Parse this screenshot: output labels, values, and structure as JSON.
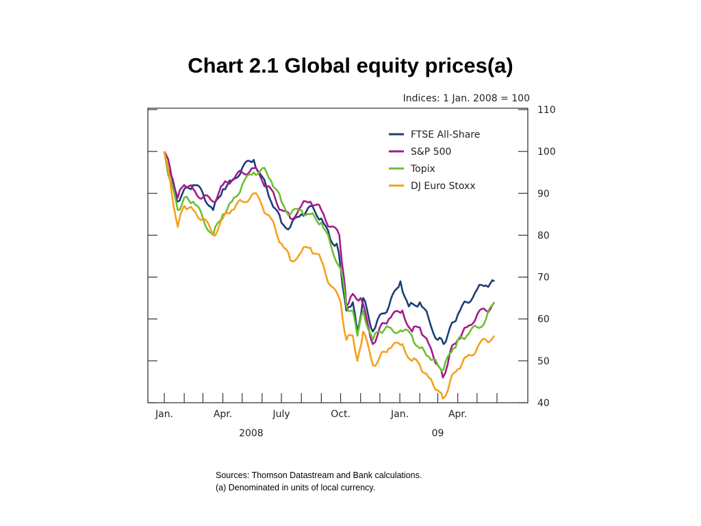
{
  "slide": {
    "title": "Chart 2.1  Global equity prices(a)",
    "sources": "Sources:  Thomson Datastream and Bank calculations.",
    "footnote": "(a) Denominated in units of local currency."
  },
  "chart_data": {
    "type": "line",
    "units_label": "Indices:  1 Jan. 2008 = 100",
    "ylim": [
      40,
      110
    ],
    "yticks": [
      40,
      50,
      60,
      70,
      80,
      90,
      100,
      110
    ],
    "y_axis_side": "right",
    "grid": false,
    "legend_position": "top-right",
    "x_range": [
      "2008-01-01",
      "2009-06-01"
    ],
    "month_ticks": [
      "2008-01-01",
      "2008-02-01",
      "2008-03-01",
      "2008-04-01",
      "2008-05-01",
      "2008-06-01",
      "2008-07-01",
      "2008-08-01",
      "2008-09-01",
      "2008-10-01",
      "2008-11-01",
      "2008-12-01",
      "2009-01-01",
      "2009-02-01",
      "2009-03-01",
      "2009-04-01",
      "2009-05-01",
      "2009-06-01"
    ],
    "x_labels": [
      {
        "date": "2008-01-01",
        "label": "Jan."
      },
      {
        "date": "2008-04-01",
        "label": "Apr."
      },
      {
        "date": "2008-07-01",
        "label": "July"
      },
      {
        "date": "2008-10-01",
        "label": "Oct."
      },
      {
        "date": "2009-01-01",
        "label": "Jan."
      },
      {
        "date": "2009-04-01",
        "label": "Apr."
      }
    ],
    "year_labels": [
      {
        "date": "2008-05-15",
        "label": "2008"
      },
      {
        "date": "2009-03-01",
        "label": "09"
      }
    ],
    "series": [
      {
        "name": "FTSE All-Share",
        "color": "#1b3c78",
        "points": [
          [
            "2008-01-01",
            100
          ],
          [
            "2008-01-10",
            95
          ],
          [
            "2008-01-21",
            88
          ],
          [
            "2008-02-01",
            91
          ],
          [
            "2008-02-15",
            92
          ],
          [
            "2008-03-01",
            90
          ],
          [
            "2008-03-17",
            86
          ],
          [
            "2008-04-01",
            91
          ],
          [
            "2008-04-15",
            93
          ],
          [
            "2008-05-01",
            96
          ],
          [
            "2008-05-19",
            98
          ],
          [
            "2008-06-01",
            94
          ],
          [
            "2008-06-15",
            88
          ],
          [
            "2008-07-01",
            83
          ],
          [
            "2008-07-15",
            82
          ],
          [
            "2008-08-01",
            85
          ],
          [
            "2008-08-15",
            87
          ],
          [
            "2008-09-01",
            84
          ],
          [
            "2008-09-15",
            79
          ],
          [
            "2008-09-25",
            78
          ],
          [
            "2008-10-01",
            72
          ],
          [
            "2008-10-10",
            62
          ],
          [
            "2008-10-20",
            64
          ],
          [
            "2008-10-27",
            57
          ],
          [
            "2008-11-05",
            65
          ],
          [
            "2008-11-20",
            57
          ],
          [
            "2008-12-01",
            61
          ],
          [
            "2008-12-15",
            63
          ],
          [
            "2009-01-02",
            69
          ],
          [
            "2009-01-15",
            63
          ],
          [
            "2009-02-01",
            64
          ],
          [
            "2009-02-15",
            60
          ],
          [
            "2009-03-01",
            55
          ],
          [
            "2009-03-10",
            54
          ],
          [
            "2009-03-20",
            58
          ],
          [
            "2009-04-01",
            61
          ],
          [
            "2009-04-15",
            64
          ],
          [
            "2009-05-01",
            67
          ],
          [
            "2009-05-15",
            68
          ],
          [
            "2009-05-28",
            69
          ]
        ]
      },
      {
        "name": "S&P 500",
        "color": "#a3198d",
        "points": [
          [
            "2008-01-01",
            100
          ],
          [
            "2008-01-10",
            96
          ],
          [
            "2008-01-22",
            89
          ],
          [
            "2008-02-01",
            92
          ],
          [
            "2008-02-15",
            91
          ],
          [
            "2008-03-01",
            89
          ],
          [
            "2008-03-17",
            88
          ],
          [
            "2008-04-01",
            92
          ],
          [
            "2008-04-15",
            93
          ],
          [
            "2008-05-01",
            95
          ],
          [
            "2008-05-19",
            96
          ],
          [
            "2008-06-01",
            93
          ],
          [
            "2008-06-15",
            91
          ],
          [
            "2008-07-01",
            86
          ],
          [
            "2008-07-15",
            84
          ],
          [
            "2008-08-01",
            87
          ],
          [
            "2008-08-15",
            88
          ],
          [
            "2008-09-01",
            86
          ],
          [
            "2008-09-15",
            82
          ],
          [
            "2008-09-29",
            80
          ],
          [
            "2008-10-06",
            70
          ],
          [
            "2008-10-10",
            63
          ],
          [
            "2008-10-20",
            66
          ],
          [
            "2008-11-01",
            65
          ],
          [
            "2008-11-20",
            54
          ],
          [
            "2008-12-01",
            58
          ],
          [
            "2008-12-15",
            60
          ],
          [
            "2009-01-05",
            62
          ],
          [
            "2009-01-20",
            57
          ],
          [
            "2009-02-01",
            58
          ],
          [
            "2009-02-15",
            54
          ],
          [
            "2009-03-01",
            49
          ],
          [
            "2009-03-09",
            46
          ],
          [
            "2009-03-20",
            52
          ],
          [
            "2009-04-01",
            55
          ],
          [
            "2009-04-15",
            58
          ],
          [
            "2009-05-01",
            61
          ],
          [
            "2009-05-15",
            62
          ],
          [
            "2009-05-28",
            64
          ]
        ]
      },
      {
        "name": "Topix",
        "color": "#6cbf2f",
        "points": [
          [
            "2008-01-01",
            100
          ],
          [
            "2008-01-10",
            93
          ],
          [
            "2008-01-22",
            86
          ],
          [
            "2008-02-01",
            89
          ],
          [
            "2008-02-15",
            88
          ],
          [
            "2008-03-01",
            84
          ],
          [
            "2008-03-17",
            80
          ],
          [
            "2008-04-01",
            85
          ],
          [
            "2008-04-15",
            88
          ],
          [
            "2008-05-01",
            92
          ],
          [
            "2008-05-19",
            95
          ],
          [
            "2008-06-01",
            96
          ],
          [
            "2008-06-15",
            93
          ],
          [
            "2008-07-01",
            88
          ],
          [
            "2008-07-15",
            85
          ],
          [
            "2008-08-01",
            86
          ],
          [
            "2008-08-15",
            85
          ],
          [
            "2008-09-01",
            83
          ],
          [
            "2008-09-15",
            78
          ],
          [
            "2008-10-01",
            72
          ],
          [
            "2008-10-10",
            63
          ],
          [
            "2008-10-20",
            62
          ],
          [
            "2008-10-27",
            56
          ],
          [
            "2008-11-05",
            62
          ],
          [
            "2008-11-20",
            55
          ],
          [
            "2008-12-01",
            57
          ],
          [
            "2008-12-15",
            58
          ],
          [
            "2009-01-05",
            57
          ],
          [
            "2009-01-20",
            56
          ],
          [
            "2009-02-01",
            53
          ],
          [
            "2009-02-15",
            51
          ],
          [
            "2009-03-01",
            49
          ],
          [
            "2009-03-10",
            48
          ],
          [
            "2009-03-25",
            53
          ],
          [
            "2009-04-01",
            55
          ],
          [
            "2009-04-15",
            56
          ],
          [
            "2009-05-01",
            58
          ],
          [
            "2009-05-15",
            60
          ],
          [
            "2009-05-28",
            64
          ]
        ]
      },
      {
        "name": "DJ Euro Stoxx",
        "color": "#f5a01b",
        "points": [
          [
            "2008-01-01",
            100
          ],
          [
            "2008-01-10",
            93
          ],
          [
            "2008-01-22",
            82
          ],
          [
            "2008-02-01",
            87
          ],
          [
            "2008-02-15",
            86
          ],
          [
            "2008-03-01",
            84
          ],
          [
            "2008-03-17",
            80
          ],
          [
            "2008-04-01",
            84
          ],
          [
            "2008-04-15",
            86
          ],
          [
            "2008-05-01",
            88
          ],
          [
            "2008-05-19",
            90
          ],
          [
            "2008-06-01",
            87
          ],
          [
            "2008-06-15",
            84
          ],
          [
            "2008-07-01",
            78
          ],
          [
            "2008-07-15",
            74
          ],
          [
            "2008-08-01",
            76
          ],
          [
            "2008-08-15",
            77
          ],
          [
            "2008-09-01",
            74
          ],
          [
            "2008-09-15",
            68
          ],
          [
            "2008-10-01",
            64
          ],
          [
            "2008-10-10",
            55
          ],
          [
            "2008-10-20",
            56
          ],
          [
            "2008-10-27",
            50
          ],
          [
            "2008-11-05",
            57
          ],
          [
            "2008-11-20",
            49
          ],
          [
            "2008-12-01",
            51
          ],
          [
            "2008-12-15",
            53
          ],
          [
            "2009-01-05",
            54
          ],
          [
            "2009-01-20",
            50
          ],
          [
            "2009-02-01",
            49
          ],
          [
            "2009-02-15",
            46
          ],
          [
            "2009-03-01",
            43
          ],
          [
            "2009-03-09",
            41
          ],
          [
            "2009-03-20",
            45
          ],
          [
            "2009-04-01",
            48
          ],
          [
            "2009-04-15",
            51
          ],
          [
            "2009-05-01",
            53
          ],
          [
            "2009-05-15",
            55
          ],
          [
            "2009-05-28",
            56
          ]
        ]
      }
    ]
  }
}
